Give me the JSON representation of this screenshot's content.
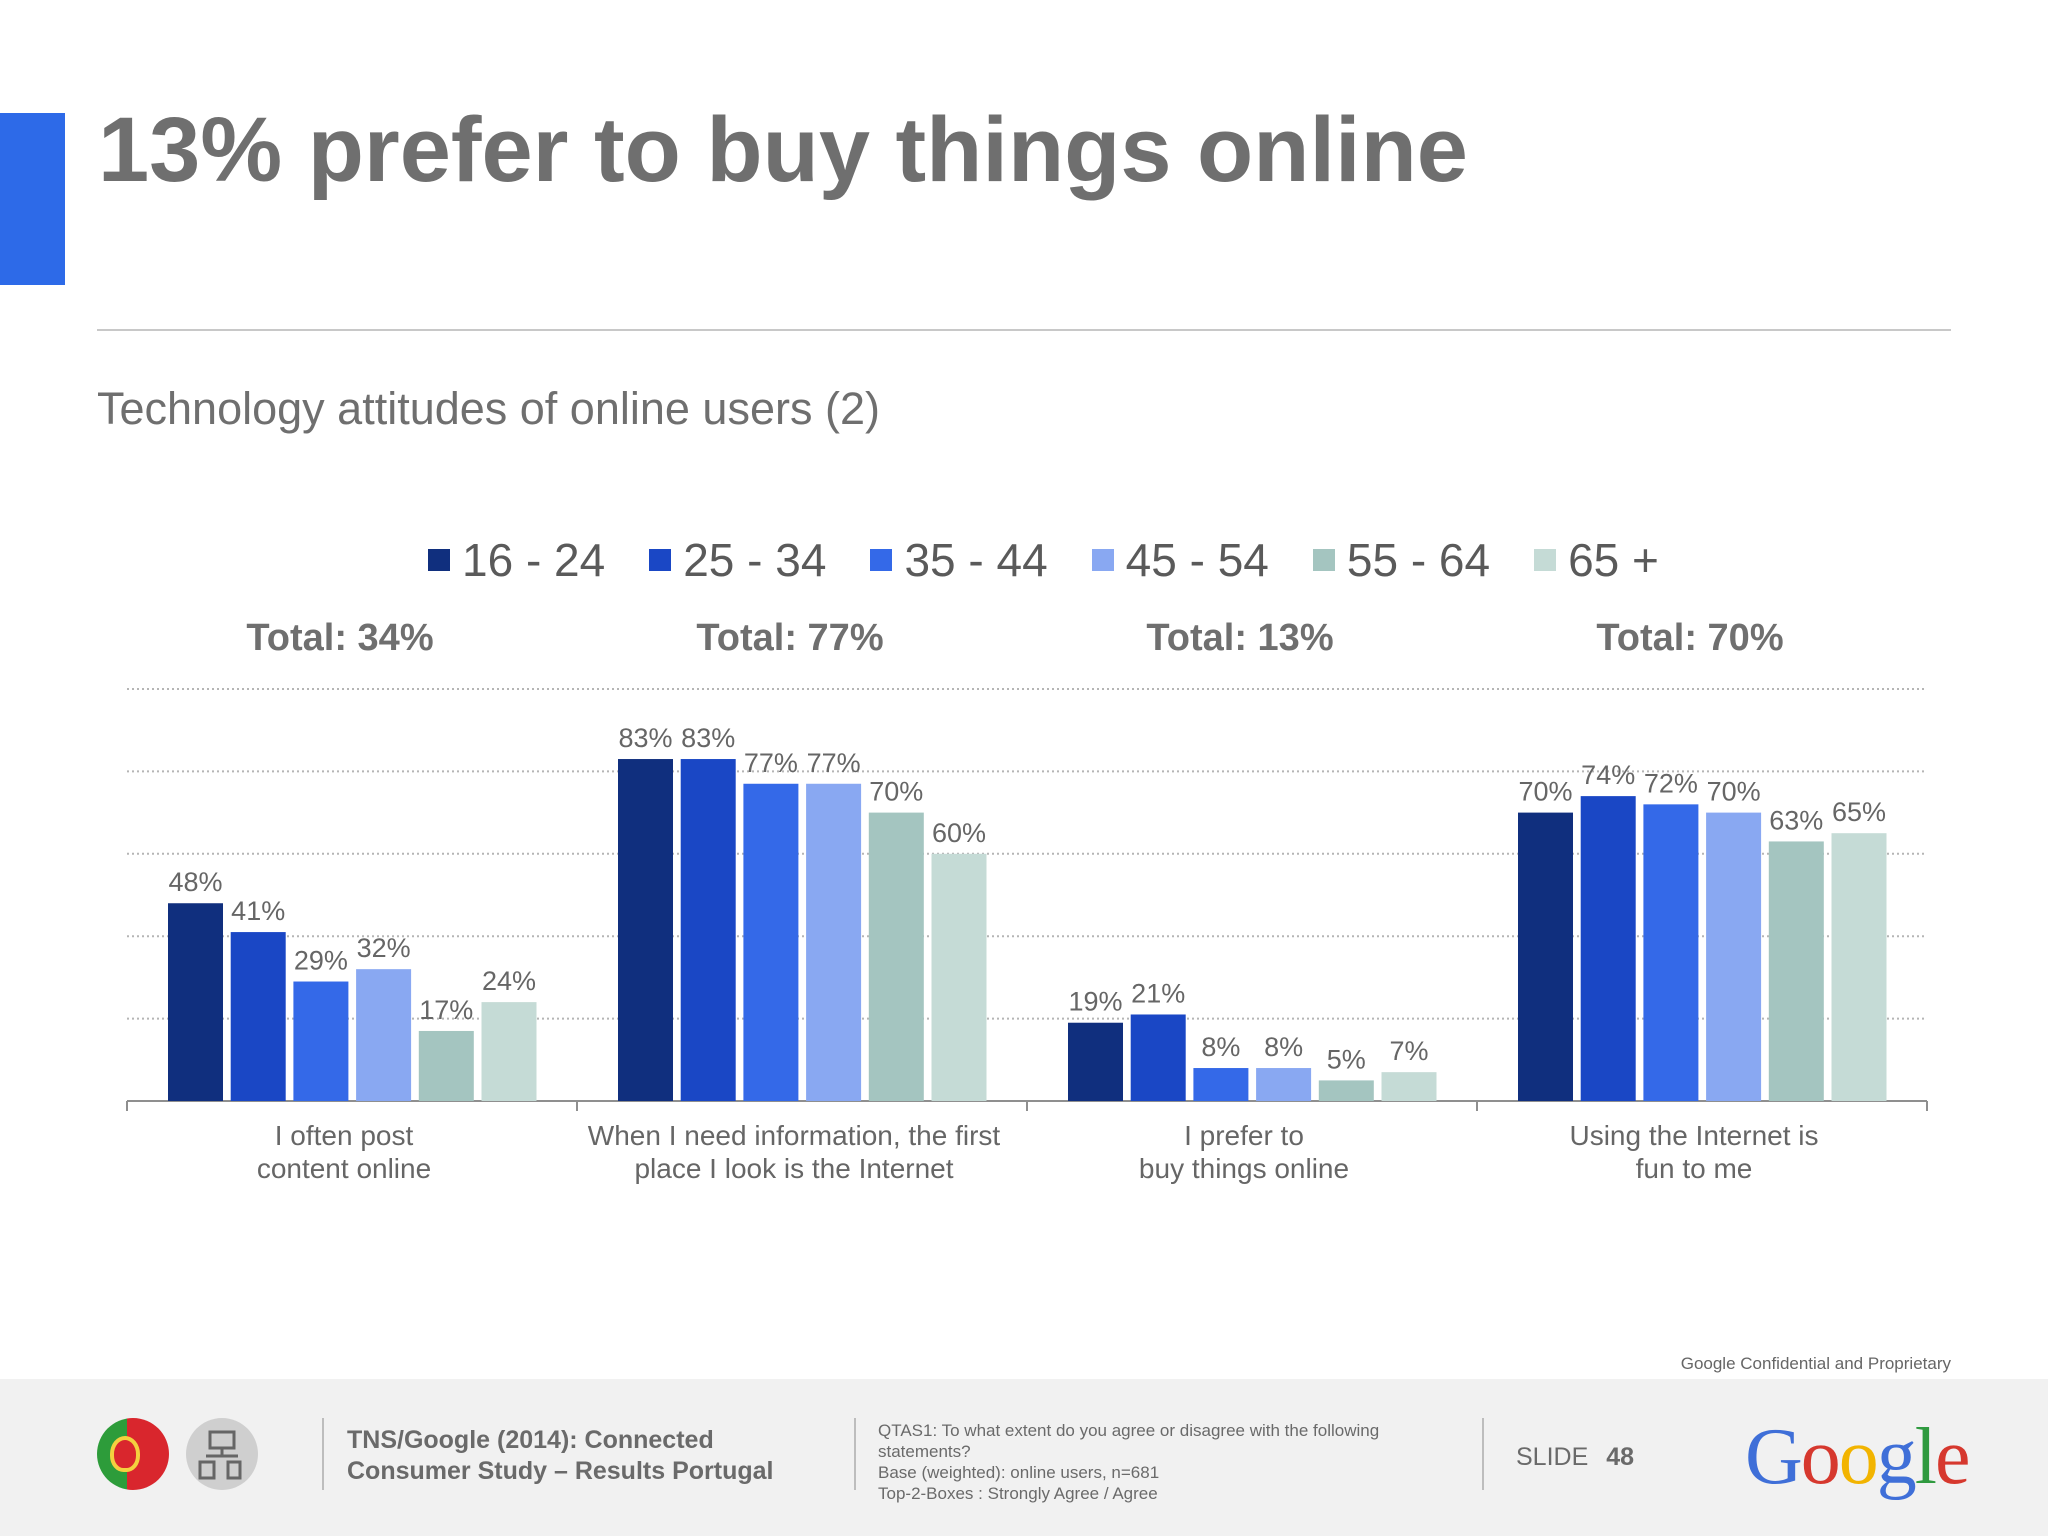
{
  "title": "13% prefer to buy things online",
  "subtitle": "Technology attitudes of online users (2)",
  "chart_data": {
    "type": "bar",
    "categories": [
      [
        "I often post",
        "content online"
      ],
      [
        "When I need information, the first",
        "place I look is the Internet"
      ],
      [
        "I prefer to",
        "buy things online"
      ],
      [
        "Using the Internet is",
        "fun to me"
      ]
    ],
    "totals": [
      "Total: 34%",
      "Total: 77%",
      "Total: 13%",
      "Total: 70%"
    ],
    "ylim": [
      0,
      100
    ],
    "grid": "dotted-horizontal",
    "legend_placement": "top",
    "series": [
      {
        "name": "16 - 24",
        "color": "#102f7e",
        "values": [
          48,
          83,
          19,
          70
        ]
      },
      {
        "name": "25 - 34",
        "color": "#1a47c5",
        "values": [
          41,
          83,
          21,
          74
        ]
      },
      {
        "name": "35 - 44",
        "color": "#3469e8",
        "values": [
          29,
          77,
          8,
          72
        ]
      },
      {
        "name": "45 - 54",
        "color": "#89a8f2",
        "values": [
          32,
          77,
          8,
          70
        ]
      },
      {
        "name": "55 - 64",
        "color": "#a4c5c0",
        "values": [
          17,
          70,
          5,
          63
        ]
      },
      {
        "name": "65 +",
        "color": "#c5dbd6",
        "values": [
          24,
          60,
          7,
          65
        ]
      }
    ],
    "value_labels": [
      [
        "48%",
        "41%",
        "29%",
        "32%",
        "17%",
        "24%"
      ],
      [
        "83%",
        "83%",
        "77%",
        "77%",
        "70%",
        "60%"
      ],
      [
        "19%",
        "21%",
        "8%",
        "8%",
        "5%",
        "7%"
      ],
      [
        "70%",
        "74%",
        "72%",
        "70%",
        "63%",
        "65%"
      ]
    ]
  },
  "footer": {
    "confidential": "Google Confidential and Proprietary",
    "source_line1": "TNS/Google (2014): Connected",
    "source_line2": "Consumer Study – Results Portugal",
    "note_line1": "QTAS1: To what extent do you agree or disagree with the following",
    "note_line2": "statements?",
    "note_line3": "Base (weighted): online users, n=681",
    "note_line4": "Top-2-Boxes : Strongly Agree / Agree",
    "slide_label": "SLIDE",
    "slide_number": "48",
    "logo_text": "Google",
    "logo_colors": [
      "#3f6fd8",
      "#d6382e",
      "#f2b400",
      "#3f6fd8",
      "#2f9a3f",
      "#d6382e"
    ]
  }
}
